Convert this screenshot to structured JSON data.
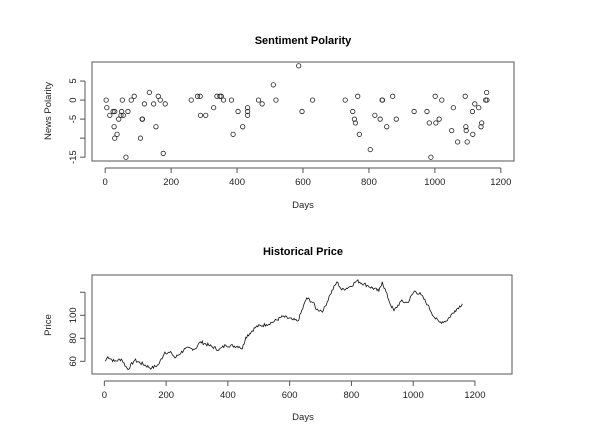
{
  "chart_data": [
    {
      "type": "scatter",
      "title": "Sentiment Polarity",
      "xlabel": "Days",
      "ylabel": "News Polarity",
      "xlim": [
        -40,
        1240
      ],
      "ylim": [
        -16,
        10
      ],
      "xticks": [
        0,
        200,
        400,
        600,
        800,
        1000,
        1200
      ],
      "yticks": [
        -15,
        -10,
        -5,
        0,
        5
      ],
      "ytick_labels": [
        "-15",
        "",
        "-5",
        "0",
        "5"
      ],
      "points": [
        [
          3,
          0
        ],
        [
          5,
          -2
        ],
        [
          14,
          -4
        ],
        [
          24,
          -3
        ],
        [
          29,
          -3
        ],
        [
          27,
          -7
        ],
        [
          29,
          -10
        ],
        [
          36,
          -9
        ],
        [
          41,
          -5
        ],
        [
          48,
          -4
        ],
        [
          52,
          0
        ],
        [
          55,
          -4
        ],
        [
          50,
          -3
        ],
        [
          63,
          -15
        ],
        [
          69,
          -3
        ],
        [
          79,
          0
        ],
        [
          88,
          1
        ],
        [
          107,
          -10
        ],
        [
          112,
          -5
        ],
        [
          113,
          -5
        ],
        [
          119,
          -1
        ],
        [
          134,
          2
        ],
        [
          147,
          -1
        ],
        [
          154,
          -7
        ],
        [
          161,
          1
        ],
        [
          167,
          0
        ],
        [
          176,
          -14
        ],
        [
          182,
          -1
        ],
        [
          261,
          0
        ],
        [
          280,
          1
        ],
        [
          288,
          1
        ],
        [
          289,
          -4
        ],
        [
          305,
          -4
        ],
        [
          329,
          -2
        ],
        [
          339,
          1
        ],
        [
          348,
          1
        ],
        [
          352,
          1
        ],
        [
          359,
          0
        ],
        [
          383,
          0
        ],
        [
          388,
          -9
        ],
        [
          403,
          -3
        ],
        [
          417,
          -7
        ],
        [
          432,
          -2
        ],
        [
          432,
          -4
        ],
        [
          432,
          -3
        ],
        [
          465,
          0
        ],
        [
          476,
          -1
        ],
        [
          510,
          4
        ],
        [
          518,
          0
        ],
        [
          587,
          9
        ],
        [
          597,
          -3
        ],
        [
          629,
          0
        ],
        [
          728,
          0
        ],
        [
          751,
          -3
        ],
        [
          756,
          -5
        ],
        [
          759,
          -6
        ],
        [
          766,
          1
        ],
        [
          771,
          -9
        ],
        [
          804,
          -13
        ],
        [
          818,
          -4
        ],
        [
          834,
          -5
        ],
        [
          840,
          0
        ],
        [
          841,
          0
        ],
        [
          854,
          -7
        ],
        [
          872,
          1
        ],
        [
          883,
          -5
        ],
        [
          937,
          -3
        ],
        [
          976,
          -3
        ],
        [
          983,
          -6
        ],
        [
          988,
          -15
        ],
        [
          1001,
          1
        ],
        [
          1003,
          -6
        ],
        [
          1013,
          -5
        ],
        [
          1021,
          0
        ],
        [
          1051,
          -8
        ],
        [
          1056,
          -2
        ],
        [
          1069,
          -11
        ],
        [
          1092,
          1
        ],
        [
          1094,
          -7
        ],
        [
          1095,
          -8
        ],
        [
          1098,
          -11
        ],
        [
          1114,
          -3
        ],
        [
          1115,
          -9
        ],
        [
          1121,
          -1
        ],
        [
          1133,
          -2
        ],
        [
          1140,
          -7
        ],
        [
          1142,
          -6
        ],
        [
          1154,
          0
        ],
        [
          1157,
          2
        ],
        [
          1158,
          0
        ]
      ]
    },
    {
      "type": "line",
      "title": "Historical Price",
      "xlabel": "Days",
      "ylabel": "Price",
      "xlim": [
        -40,
        1320
      ],
      "ylim": [
        49,
        135
      ],
      "xticks": [
        0,
        200,
        400,
        600,
        800,
        1000,
        1200
      ],
      "yticks": [
        60,
        80,
        100,
        120
      ],
      "ytick_labels": [
        "60",
        "80",
        "100",
        ""
      ],
      "x": [
        3,
        11,
        33,
        55,
        76,
        98,
        153,
        175,
        196,
        218,
        229,
        262,
        295,
        311,
        338,
        371,
        393,
        436,
        447,
        458,
        491,
        524,
        545,
        578,
        611,
        627,
        655,
        676,
        687,
        709,
        731,
        753,
        769,
        796,
        818,
        851,
        889,
        900,
        927,
        938,
        960,
        982,
        1004,
        1025,
        1047,
        1069,
        1085,
        1107,
        1135,
        1159
      ],
      "y": [
        60,
        64,
        60,
        62,
        53,
        61,
        54,
        57,
        68,
        67,
        63,
        71,
        71,
        77,
        74,
        70,
        74,
        73,
        71,
        81,
        90,
        92,
        94,
        99,
        96,
        95,
        115,
        111,
        105,
        104,
        118,
        129,
        122,
        125,
        130,
        126,
        121,
        129,
        109,
        104,
        112,
        111,
        121,
        118,
        109,
        98,
        94,
        95,
        104,
        110
      ]
    }
  ]
}
